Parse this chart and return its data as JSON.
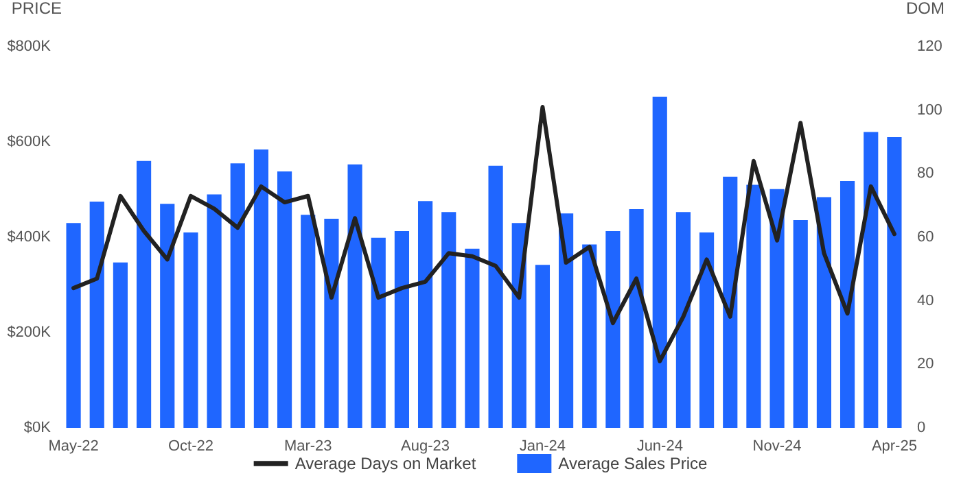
{
  "chart_data": {
    "type": "bar",
    "ylabel": "PRICE",
    "y2label": "DOM",
    "categories": [
      "May-22",
      null,
      null,
      null,
      null,
      "Oct-22",
      null,
      null,
      null,
      null,
      "Mar-23",
      null,
      null,
      null,
      null,
      "Aug-23",
      null,
      null,
      null,
      null,
      "Jan-24",
      null,
      null,
      null,
      null,
      "Jun-24",
      null,
      null,
      null,
      null,
      "Nov-24",
      null,
      null,
      null,
      null,
      "Apr-25"
    ],
    "series": [
      {
        "name": "Average Days on Market",
        "type": "line",
        "axis": "y2",
        "color": "#222222",
        "values": [
          44,
          47,
          73,
          62,
          53,
          73,
          69,
          63,
          76,
          71,
          73,
          41,
          66,
          41,
          44,
          46,
          55,
          54,
          51,
          41,
          101,
          52,
          57,
          33,
          47,
          21,
          35,
          53,
          35,
          84,
          59,
          96,
          55,
          36,
          76,
          61
        ]
      },
      {
        "name": "Average Sales Price",
        "color": "#1f66ff",
        "values": [
          430000,
          475000,
          347000,
          560000,
          470000,
          410000,
          490000,
          555000,
          584000,
          538000,
          447000,
          439000,
          553000,
          399000,
          413000,
          476000,
          453000,
          376000,
          550000,
          430000,
          342000,
          450000,
          385000,
          413000,
          459000,
          695000,
          453000,
          410000,
          527000,
          510000,
          501000,
          436000,
          484000,
          518000,
          621000,
          610000
        ]
      }
    ],
    "ylim": [
      0,
      800000
    ],
    "yticks": [
      {
        "value": 0,
        "label": "$0K"
      },
      {
        "value": 200000,
        "label": "$200K"
      },
      {
        "value": 400000,
        "label": "$400K"
      },
      {
        "value": 600000,
        "label": "$600K"
      },
      {
        "value": 800000,
        "label": "$800K"
      }
    ],
    "y2lim": [
      0,
      120
    ],
    "y2ticks": [
      0,
      20,
      40,
      60,
      80,
      100,
      120
    ],
    "grid": false,
    "legend": "bottom",
    "marker": "none",
    "line_style": "solid"
  }
}
